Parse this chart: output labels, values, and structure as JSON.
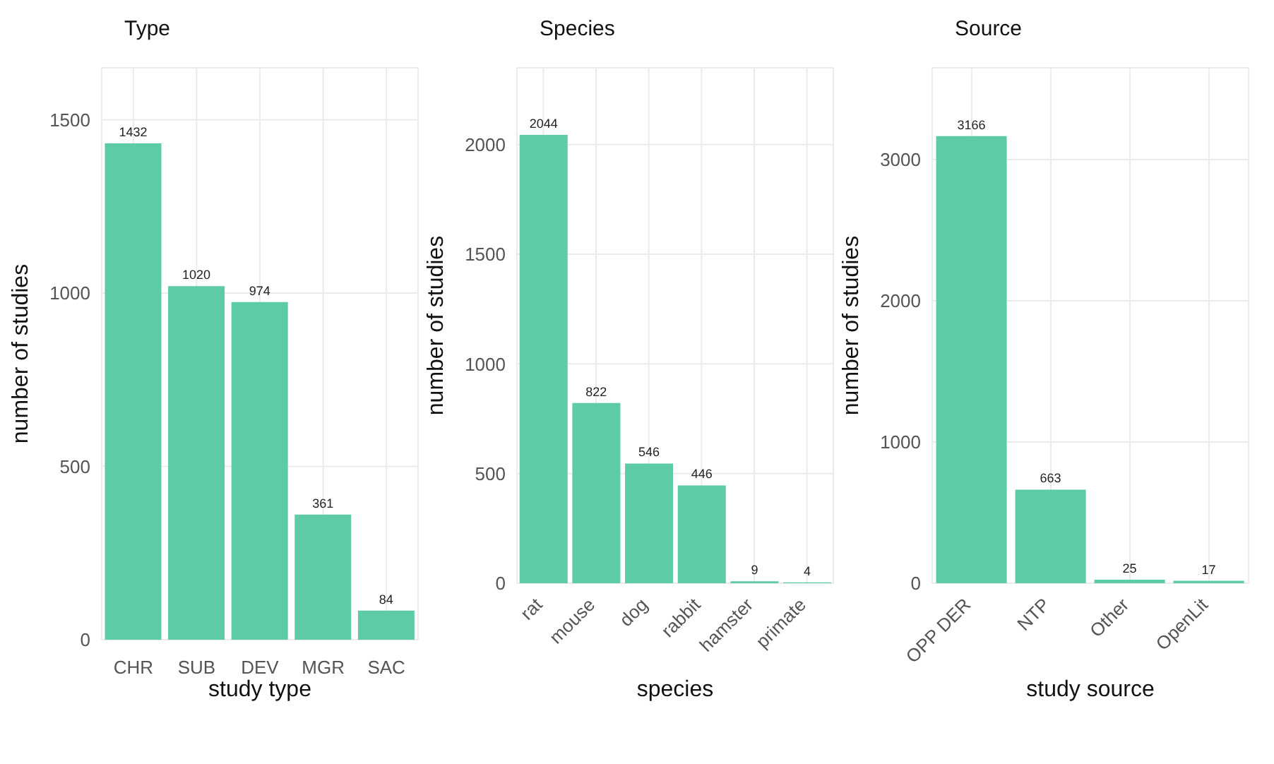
{
  "chart_data": [
    {
      "type": "bar",
      "title": "Type",
      "xlabel": "study type",
      "ylabel": "number of studies",
      "categories": [
        "CHR",
        "SUB",
        "DEV",
        "MGR",
        "SAC"
      ],
      "values": [
        1432,
        1020,
        974,
        361,
        84
      ],
      "color": "#5ccba6",
      "ylim": [
        0,
        1650
      ],
      "yticks": [
        0,
        500,
        1000,
        1500
      ],
      "grid": true,
      "data_labels": true
    },
    {
      "type": "bar",
      "title": "Species",
      "xlabel": "species",
      "ylabel": "number of studies",
      "categories": [
        "rat",
        "mouse",
        "dog",
        "rabbit",
        "hamster",
        "primate"
      ],
      "values": [
        2044,
        822,
        546,
        446,
        9,
        4
      ],
      "color": "#5ccba6",
      "ylim": [
        0,
        2350
      ],
      "yticks": [
        0,
        500,
        1000,
        1500,
        2000
      ],
      "grid": true,
      "data_labels": true
    },
    {
      "type": "bar",
      "title": "Source",
      "xlabel": "study source",
      "ylabel": "number of studies",
      "categories": [
        "OPP DER",
        "NTP",
        "Other",
        "OpenLit"
      ],
      "values": [
        3166,
        663,
        25,
        17
      ],
      "color": "#5ccba6",
      "ylim": [
        0,
        3650
      ],
      "yticks": [
        0,
        1000,
        2000,
        3000
      ],
      "grid": true,
      "data_labels": true
    }
  ]
}
